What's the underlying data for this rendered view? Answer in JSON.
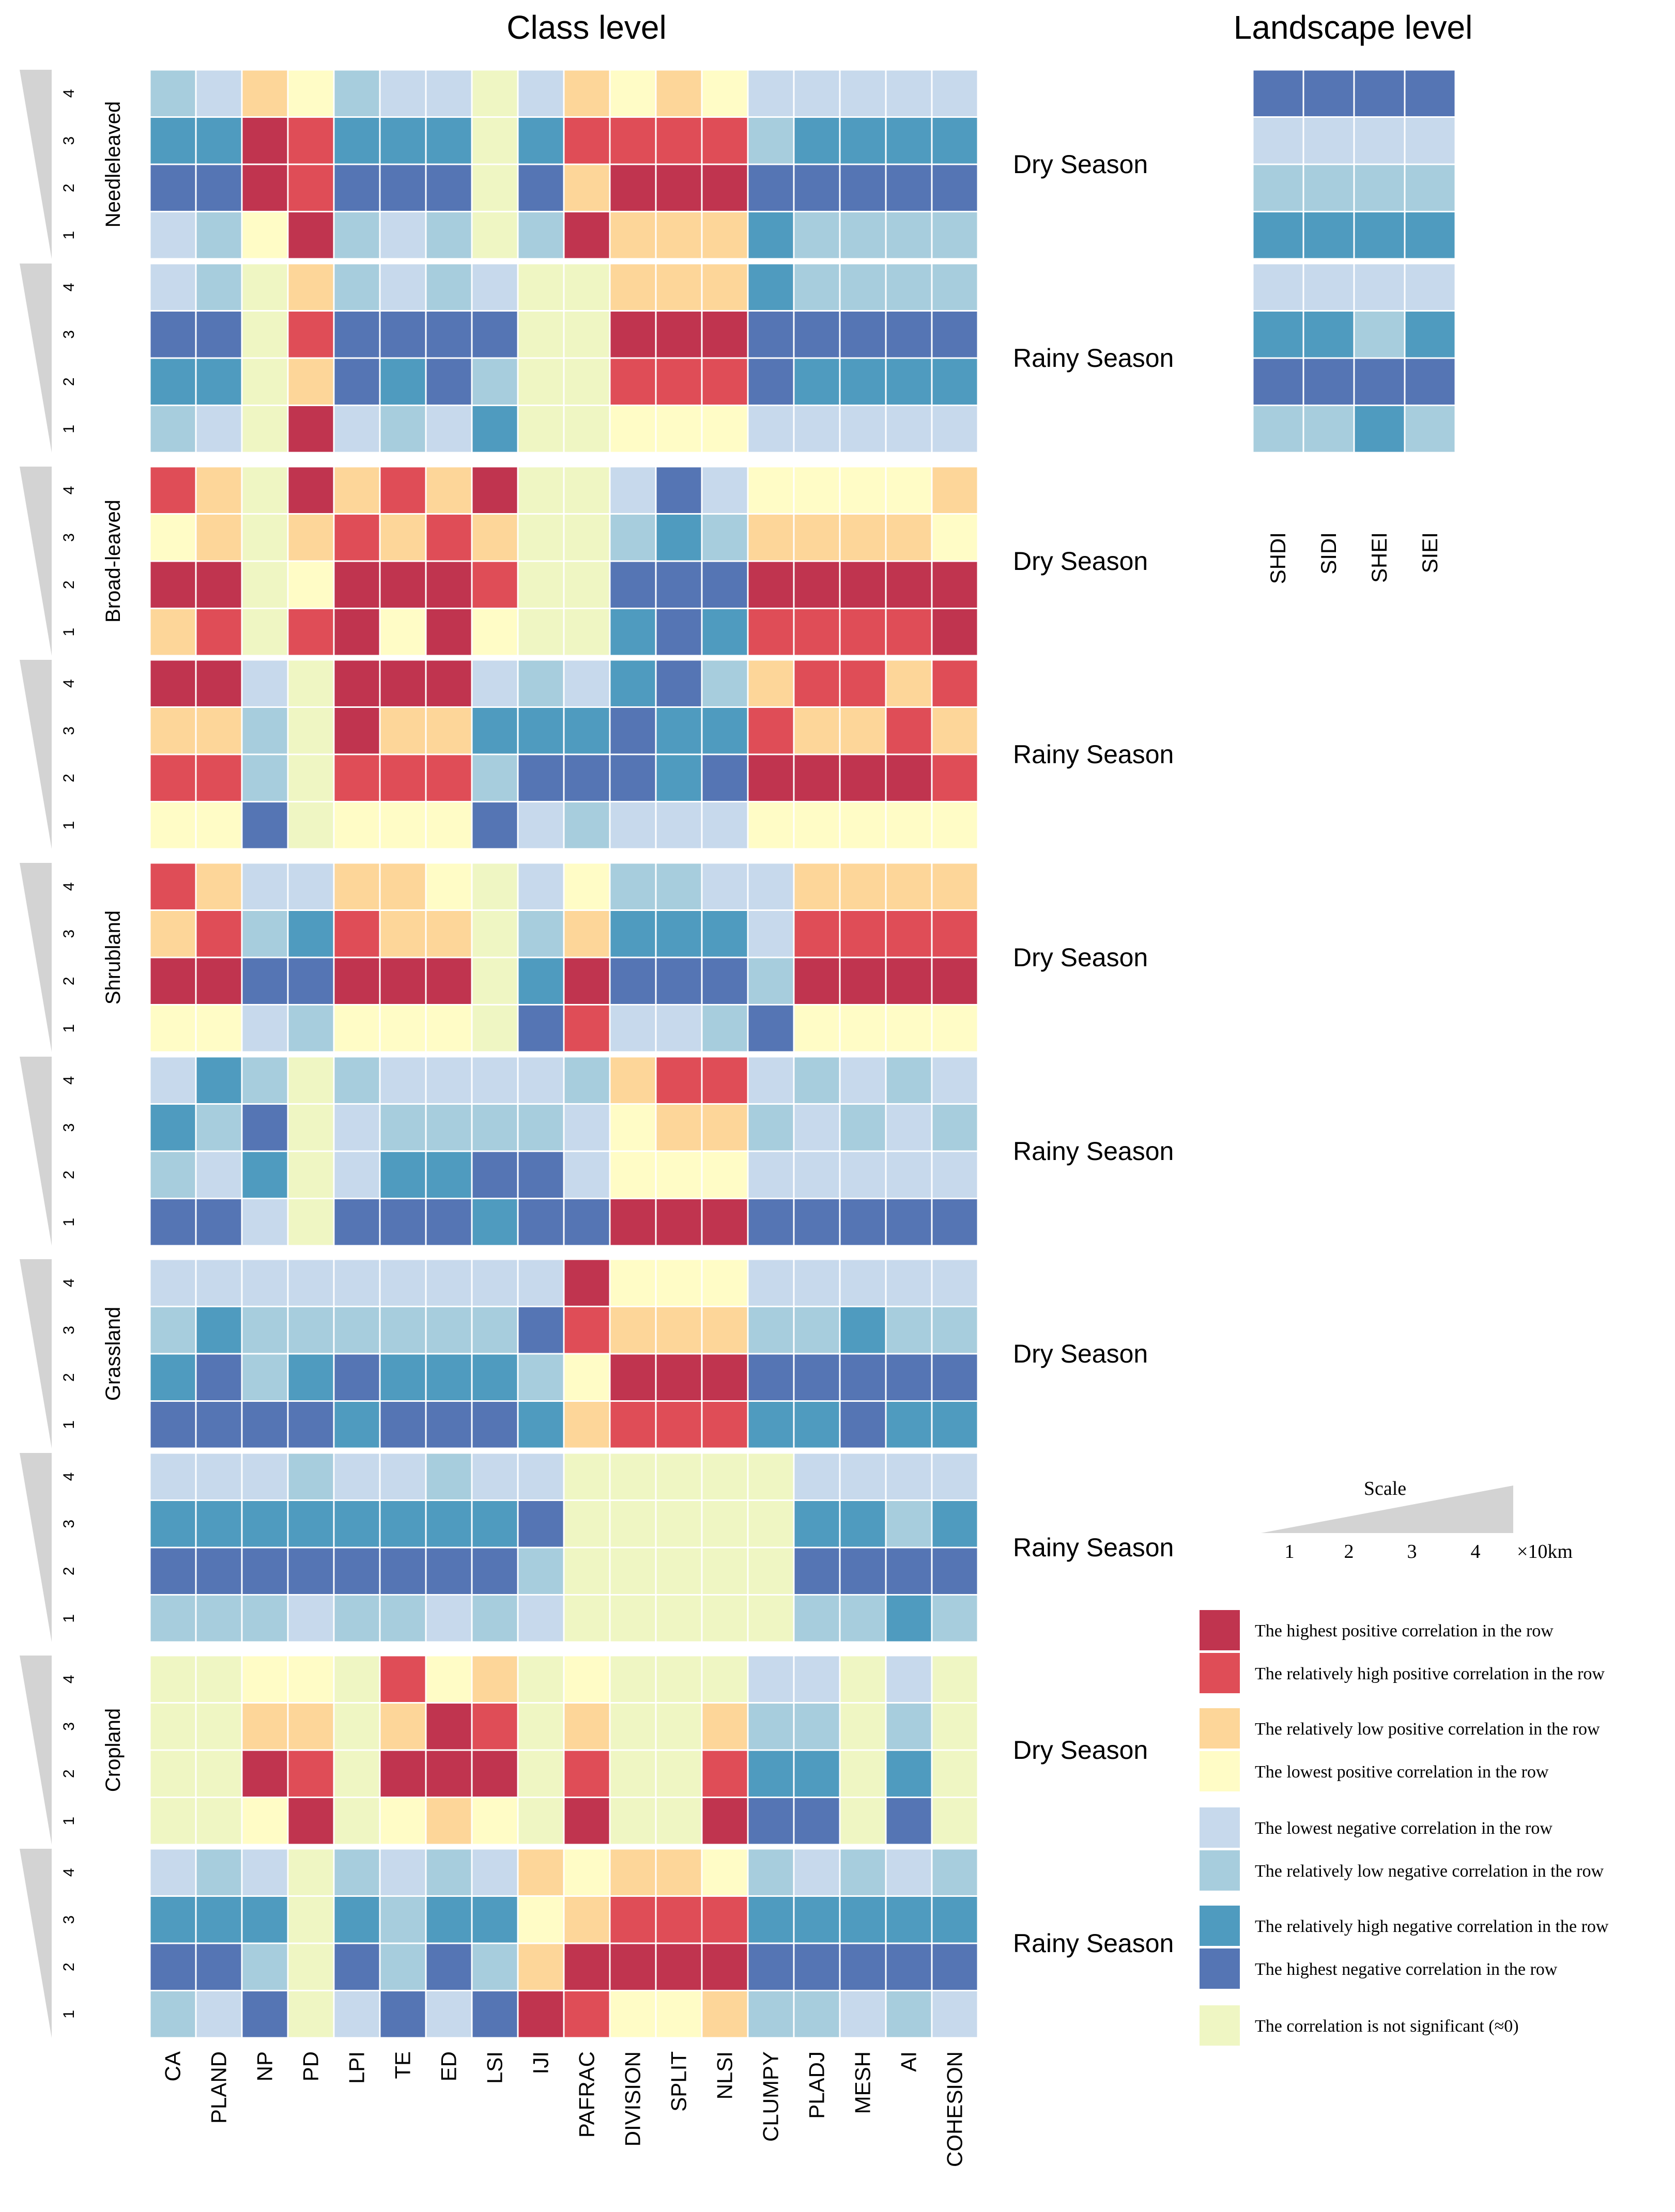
{
  "chart_data": {
    "type": "heatmap",
    "class_title": "Class level",
    "landscape_title": "Landscape level",
    "class_metrics": [
      "CA",
      "PLAND",
      "NP",
      "PD",
      "LPI",
      "TE",
      "ED",
      "LSI",
      "IJI",
      "PAFRAC",
      "DIVISION",
      "SPLIT",
      "NLSI",
      "CLUMPY",
      "PLADJ",
      "MESH",
      "AI",
      "COHESION"
    ],
    "landscape_metrics": [
      "SHDI",
      "SIDI",
      "SHEI",
      "SIEI"
    ],
    "scale_ticks": [
      "4",
      "3",
      "2",
      "1"
    ],
    "code_legend": {
      "P4": "highest positive",
      "P3": "relatively high positive",
      "P2": "relatively low positive",
      "P1": "lowest positive",
      "N1": "lowest negative",
      "N2": "relatively low negative",
      "N3": "relatively high negative",
      "N4": "highest negative",
      "Z": "not significant"
    },
    "panels": [
      {
        "landcover": "Needleleaved",
        "season": "Dry Season",
        "rows": [
          [
            "N2",
            "N1",
            "P2",
            "P1",
            "N2",
            "N1",
            "N1",
            "Z",
            "N1",
            "P2",
            "P1",
            "P2",
            "P1",
            "N1",
            "N1",
            "N1",
            "N1",
            "N1"
          ],
          [
            "N3",
            "N3",
            "P4",
            "P3",
            "N3",
            "N3",
            "N3",
            "Z",
            "N3",
            "P3",
            "P3",
            "P3",
            "P3",
            "N2",
            "N3",
            "N3",
            "N3",
            "N3"
          ],
          [
            "N4",
            "N4",
            "P4",
            "P3",
            "N4",
            "N4",
            "N4",
            "Z",
            "N4",
            "P2",
            "P4",
            "P4",
            "P4",
            "N4",
            "N4",
            "N4",
            "N4",
            "N4"
          ],
          [
            "N1",
            "N2",
            "P1",
            "P4",
            "N2",
            "N1",
            "N2",
            "Z",
            "N2",
            "P4",
            "P2",
            "P2",
            "P2",
            "N3",
            "N2",
            "N2",
            "N2",
            "N2"
          ]
        ]
      },
      {
        "landcover": "",
        "season": "Rainy Season",
        "rows": [
          [
            "N1",
            "N2",
            "Z",
            "P2",
            "N2",
            "N1",
            "N2",
            "N1",
            "Z",
            "Z",
            "P2",
            "P2",
            "P2",
            "N3",
            "N2",
            "N2",
            "N2",
            "N2"
          ],
          [
            "N4",
            "N4",
            "Z",
            "P3",
            "N4",
            "N4",
            "N4",
            "N4",
            "Z",
            "Z",
            "P4",
            "P4",
            "P4",
            "N4",
            "N4",
            "N4",
            "N4",
            "N4"
          ],
          [
            "N3",
            "N3",
            "Z",
            "P2",
            "N4",
            "N3",
            "N4",
            "N2",
            "Z",
            "Z",
            "P3",
            "P3",
            "P3",
            "N4",
            "N3",
            "N3",
            "N3",
            "N3"
          ],
          [
            "N2",
            "N1",
            "Z",
            "P4",
            "N1",
            "N2",
            "N1",
            "N3",
            "Z",
            "Z",
            "P1",
            "P1",
            "P1",
            "N1",
            "N1",
            "N1",
            "N1",
            "N1"
          ]
        ]
      },
      {
        "landcover": "Broad-leaved",
        "season": "Dry Season",
        "rows": [
          [
            "P3",
            "P2",
            "Z",
            "P4",
            "P2",
            "P3",
            "P2",
            "P4",
            "Z",
            "Z",
            "N1",
            "N4",
            "N1",
            "P1",
            "P1",
            "P1",
            "P1",
            "P2"
          ],
          [
            "P1",
            "P2",
            "Z",
            "P2",
            "P3",
            "P2",
            "P3",
            "P2",
            "Z",
            "Z",
            "N2",
            "N3",
            "N2",
            "P2",
            "P2",
            "P2",
            "P2",
            "P1"
          ],
          [
            "P4",
            "P4",
            "Z",
            "P1",
            "P4",
            "P4",
            "P4",
            "P3",
            "Z",
            "Z",
            "N4",
            "N4",
            "N4",
            "P4",
            "P4",
            "P4",
            "P4",
            "P4"
          ],
          [
            "P2",
            "P3",
            "Z",
            "P3",
            "P4",
            "P1",
            "P4",
            "P1",
            "Z",
            "Z",
            "N3",
            "N4",
            "N3",
            "P3",
            "P3",
            "P3",
            "P3",
            "P4"
          ]
        ]
      },
      {
        "landcover": "",
        "season": "Rainy Season",
        "rows": [
          [
            "P4",
            "P4",
            "N1",
            "Z",
            "P4",
            "P4",
            "P4",
            "N1",
            "N2",
            "N1",
            "N3",
            "N4",
            "N2",
            "P2",
            "P3",
            "P3",
            "P2",
            "P3"
          ],
          [
            "P2",
            "P2",
            "N2",
            "Z",
            "P4",
            "P2",
            "P2",
            "N3",
            "N3",
            "N3",
            "N4",
            "N3",
            "N3",
            "P3",
            "P2",
            "P2",
            "P3",
            "P2"
          ],
          [
            "P3",
            "P3",
            "N2",
            "Z",
            "P3",
            "P3",
            "P3",
            "N2",
            "N4",
            "N4",
            "N4",
            "N3",
            "N4",
            "P4",
            "P4",
            "P4",
            "P4",
            "P3"
          ],
          [
            "P1",
            "P1",
            "N4",
            "Z",
            "P1",
            "P1",
            "P1",
            "N4",
            "N1",
            "N2",
            "N1",
            "N1",
            "N1",
            "P1",
            "P1",
            "P1",
            "P1",
            "P1"
          ]
        ]
      },
      {
        "landcover": "Shrubland",
        "season": "Dry Season",
        "rows": [
          [
            "P3",
            "P2",
            "N1",
            "N1",
            "P2",
            "P2",
            "P1",
            "Z",
            "N1",
            "P1",
            "N2",
            "N2",
            "N1",
            "N1",
            "P2",
            "P2",
            "P2",
            "P2"
          ],
          [
            "P2",
            "P3",
            "N2",
            "N3",
            "P3",
            "P2",
            "P2",
            "Z",
            "N2",
            "P2",
            "N3",
            "N3",
            "N3",
            "N1",
            "P3",
            "P3",
            "P3",
            "P3"
          ],
          [
            "P4",
            "P4",
            "N4",
            "N4",
            "P4",
            "P4",
            "P4",
            "Z",
            "N3",
            "P4",
            "N4",
            "N4",
            "N4",
            "N2",
            "P4",
            "P4",
            "P4",
            "P4"
          ],
          [
            "P1",
            "P1",
            "N1",
            "N2",
            "P1",
            "P1",
            "P1",
            "Z",
            "N4",
            "P3",
            "N1",
            "N1",
            "N2",
            "N4",
            "P1",
            "P1",
            "P1",
            "P1"
          ]
        ]
      },
      {
        "landcover": "",
        "season": "Rainy Season",
        "rows": [
          [
            "N1",
            "N3",
            "N2",
            "Z",
            "N2",
            "N1",
            "N1",
            "N1",
            "N1",
            "N2",
            "P2",
            "P3",
            "P3",
            "N1",
            "N2",
            "N1",
            "N2",
            "N1"
          ],
          [
            "N3",
            "N2",
            "N4",
            "Z",
            "N1",
            "N2",
            "N2",
            "N2",
            "N2",
            "N1",
            "P1",
            "P2",
            "P2",
            "N2",
            "N1",
            "N2",
            "N1",
            "N2"
          ],
          [
            "N2",
            "N1",
            "N3",
            "Z",
            "N1",
            "N3",
            "N3",
            "N4",
            "N4",
            "N1",
            "P1",
            "P1",
            "P1",
            "N1",
            "N1",
            "N1",
            "N1",
            "N1"
          ],
          [
            "N4",
            "N4",
            "N1",
            "Z",
            "N4",
            "N4",
            "N4",
            "N3",
            "N4",
            "N4",
            "P4",
            "P4",
            "P4",
            "N4",
            "N4",
            "N4",
            "N4",
            "N4"
          ]
        ]
      },
      {
        "landcover": "Grassland",
        "season": "Dry Season",
        "rows": [
          [
            "N1",
            "N1",
            "N1",
            "N1",
            "N1",
            "N1",
            "N1",
            "N1",
            "N1",
            "P4",
            "P1",
            "P1",
            "P1",
            "N1",
            "N1",
            "N1",
            "N1",
            "N1"
          ],
          [
            "N2",
            "N3",
            "N2",
            "N2",
            "N2",
            "N2",
            "N2",
            "N2",
            "N4",
            "P3",
            "P2",
            "P2",
            "P2",
            "N2",
            "N2",
            "N3",
            "N2",
            "N2"
          ],
          [
            "N3",
            "N4",
            "N2",
            "N3",
            "N4",
            "N3",
            "N3",
            "N3",
            "N2",
            "P1",
            "P4",
            "P4",
            "P4",
            "N4",
            "N4",
            "N4",
            "N4",
            "N4"
          ],
          [
            "N4",
            "N4",
            "N4",
            "N4",
            "N3",
            "N4",
            "N4",
            "N4",
            "N3",
            "P2",
            "P3",
            "P3",
            "P3",
            "N3",
            "N3",
            "N4",
            "N3",
            "N3"
          ]
        ]
      },
      {
        "landcover": "",
        "season": "Rainy Season",
        "rows": [
          [
            "N1",
            "N1",
            "N1",
            "N2",
            "N1",
            "N1",
            "N2",
            "N1",
            "N1",
            "Z",
            "Z",
            "Z",
            "Z",
            "Z",
            "N1",
            "N1",
            "N1",
            "N1"
          ],
          [
            "N3",
            "N3",
            "N3",
            "N3",
            "N3",
            "N3",
            "N3",
            "N3",
            "N4",
            "Z",
            "Z",
            "Z",
            "Z",
            "Z",
            "N3",
            "N3",
            "N2",
            "N3"
          ],
          [
            "N4",
            "N4",
            "N4",
            "N4",
            "N4",
            "N4",
            "N4",
            "N4",
            "N2",
            "Z",
            "Z",
            "Z",
            "Z",
            "Z",
            "N4",
            "N4",
            "N4",
            "N4"
          ],
          [
            "N2",
            "N2",
            "N2",
            "N1",
            "N2",
            "N2",
            "N1",
            "N2",
            "N1",
            "Z",
            "Z",
            "Z",
            "Z",
            "Z",
            "N2",
            "N2",
            "N3",
            "N2"
          ]
        ]
      },
      {
        "landcover": "Cropland",
        "season": "Dry Season",
        "rows": [
          [
            "Z",
            "Z",
            "P1",
            "P1",
            "Z",
            "P3",
            "P1",
            "P2",
            "Z",
            "P1",
            "Z",
            "Z",
            "Z",
            "N1",
            "N1",
            "Z",
            "N1",
            "Z"
          ],
          [
            "Z",
            "Z",
            "P2",
            "P2",
            "Z",
            "P2",
            "P4",
            "P3",
            "Z",
            "P2",
            "Z",
            "Z",
            "P2",
            "N2",
            "N2",
            "Z",
            "N2",
            "Z"
          ],
          [
            "Z",
            "Z",
            "P4",
            "P3",
            "Z",
            "P4",
            "P4",
            "P4",
            "Z",
            "P3",
            "Z",
            "Z",
            "P3",
            "N3",
            "N3",
            "Z",
            "N3",
            "Z"
          ],
          [
            "Z",
            "Z",
            "P1",
            "P4",
            "Z",
            "P1",
            "P2",
            "P1",
            "Z",
            "P4",
            "Z",
            "Z",
            "P4",
            "N4",
            "N4",
            "Z",
            "N4",
            "Z"
          ]
        ]
      },
      {
        "landcover": "",
        "season": "Rainy Season",
        "rows": [
          [
            "N1",
            "N2",
            "N1",
            "Z",
            "N2",
            "N1",
            "N2",
            "N1",
            "P2",
            "P1",
            "P2",
            "P2",
            "P1",
            "N2",
            "N1",
            "N2",
            "N1",
            "N2"
          ],
          [
            "N3",
            "N3",
            "N3",
            "Z",
            "N3",
            "N2",
            "N3",
            "N3",
            "P1",
            "P2",
            "P3",
            "P3",
            "P3",
            "N3",
            "N3",
            "N3",
            "N3",
            "N3"
          ],
          [
            "N4",
            "N4",
            "N2",
            "Z",
            "N4",
            "N2",
            "N4",
            "N2",
            "P2",
            "P4",
            "P4",
            "P4",
            "P4",
            "N4",
            "N4",
            "N4",
            "N4",
            "N4"
          ],
          [
            "N2",
            "N1",
            "N4",
            "Z",
            "N1",
            "N4",
            "N1",
            "N4",
            "P4",
            "P3",
            "P1",
            "P1",
            "P2",
            "N2",
            "N2",
            "N1",
            "N2",
            "N1"
          ]
        ]
      }
    ],
    "landscape_panels": [
      {
        "season": "Dry Season",
        "rows": [
          [
            "N4",
            "N4",
            "N4",
            "N4"
          ],
          [
            "N1",
            "N1",
            "N1",
            "N1"
          ],
          [
            "N2",
            "N2",
            "N2",
            "N2"
          ],
          [
            "N3",
            "N3",
            "N3",
            "N3"
          ]
        ]
      },
      {
        "season": "Rainy Season",
        "rows": [
          [
            "N1",
            "N1",
            "N1",
            "N1"
          ],
          [
            "N3",
            "N3",
            "N2",
            "N3"
          ],
          [
            "N4",
            "N4",
            "N4",
            "N4"
          ],
          [
            "N2",
            "N2",
            "N3",
            "N2"
          ]
        ]
      }
    ],
    "scale_legend": {
      "title": "Scale",
      "ticks": [
        "1",
        "2",
        "3",
        "4"
      ],
      "unit": "×10km"
    },
    "legend": [
      {
        "code": "P4",
        "label": "The highest positive correlation in the row"
      },
      {
        "code": "P3",
        "label": "The relatively high positive correlation in the row"
      },
      {
        "code": "P2",
        "label": "The relatively low positive correlation in the row"
      },
      {
        "code": "P1",
        "label": "The lowest positive correlation in the row"
      },
      {
        "code": "N1",
        "label": "The lowest negative correlation in the row"
      },
      {
        "code": "N2",
        "label": "The relatively low negative correlation in the row"
      },
      {
        "code": "N3",
        "label": "The relatively high negative correlation in the row"
      },
      {
        "code": "N4",
        "label": "The highest negative correlation in the row"
      },
      {
        "code": "Z",
        "label": "The correlation is not significant (≈0)"
      }
    ]
  },
  "colors": {
    "P4": "#c0344f",
    "P3": "#df4d57",
    "P2": "#fdd699",
    "P1": "#fffcc6",
    "N1": "#c7d9ec",
    "N2": "#a7cddd",
    "N3": "#4f9bbf",
    "N4": "#5575b4",
    "Z": "#eff6c3",
    "triangle": "#d3d3d3",
    "text": "#000000"
  }
}
